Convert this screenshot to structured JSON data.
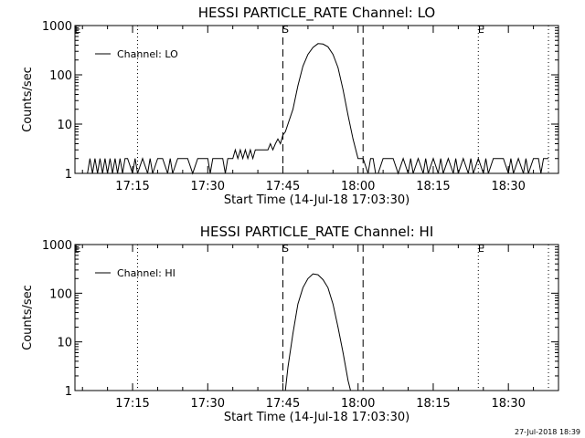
{
  "footer": {
    "timestamp": "27-Jul-2018 18:39"
  },
  "chart_data": [
    {
      "type": "line",
      "title": "HESSI PARTICLE_RATE Channel: LO",
      "xlabel": "Start Time (14-Jul-18 17:03:30)",
      "ylabel": "Counts/sec",
      "y_scale": "log",
      "ylim": [
        1,
        1000
      ],
      "xlim": [
        "17:03:30",
        "18:40:00"
      ],
      "x_ticks": [
        "17:15",
        "17:30",
        "17:45",
        "18:00",
        "18:15",
        "18:30"
      ],
      "y_ticks": [
        "1",
        "10",
        "100",
        "1000"
      ],
      "legend": {
        "position": "top-left",
        "entries": [
          "Channel: LO"
        ]
      },
      "grid": false,
      "markers": {
        "dashed": [
          "17:45",
          "18:01"
        ],
        "dotted": [
          "17:16",
          "18:24",
          "18:38"
        ],
        "labels": [
          {
            "text": "S",
            "at": "17:45"
          },
          {
            "text": "E",
            "at": "18:24"
          },
          {
            "text": "E",
            "at": "17:03:30"
          }
        ]
      },
      "series": [
        {
          "name": "Channel: LO",
          "points": [
            [
              "17:06",
              1.0
            ],
            [
              "17:06:30",
              2.0
            ],
            [
              "17:07",
              1.0
            ],
            [
              "17:07:30",
              2.0
            ],
            [
              "17:08",
              1.0
            ],
            [
              "17:08:30",
              2.0
            ],
            [
              "17:09",
              1.0
            ],
            [
              "17:09:30",
              2.0
            ],
            [
              "17:10",
              1.0
            ],
            [
              "17:10:30",
              2.0
            ],
            [
              "17:11",
              1.0
            ],
            [
              "17:11:30",
              2.0
            ],
            [
              "17:12",
              1.0
            ],
            [
              "17:12:30",
              2.0
            ],
            [
              "17:13",
              1.0
            ],
            [
              "17:13:30",
              2.0
            ],
            [
              "17:14",
              2.0
            ],
            [
              "17:15",
              1.0
            ],
            [
              "17:15:30",
              2.0
            ],
            [
              "17:16",
              1.0
            ],
            [
              "17:17",
              2.0
            ],
            [
              "17:18",
              1.0
            ],
            [
              "17:18:30",
              2.0
            ],
            [
              "17:19",
              1.0
            ],
            [
              "17:20",
              2.0
            ],
            [
              "17:21",
              2.0
            ],
            [
              "17:22",
              1.0
            ],
            [
              "17:22:30",
              2.0
            ],
            [
              "17:23",
              1.0
            ],
            [
              "17:24",
              2.0
            ],
            [
              "17:26",
              2.0
            ],
            [
              "17:27",
              1.0
            ],
            [
              "17:28",
              2.0
            ],
            [
              "17:30",
              2.0
            ],
            [
              "17:30:30",
              1.0
            ],
            [
              "17:31",
              2.0
            ],
            [
              "17:33",
              2.0
            ],
            [
              "17:33:30",
              1.0
            ],
            [
              "17:34",
              2.0
            ],
            [
              "17:35",
              2.0
            ],
            [
              "17:35:30",
              3.0
            ],
            [
              "17:36",
              2.0
            ],
            [
              "17:36:30",
              3.0
            ],
            [
              "17:37",
              2.0
            ],
            [
              "17:37:30",
              3.0
            ],
            [
              "17:38",
              2.0
            ],
            [
              "17:38:30",
              3.0
            ],
            [
              "17:39",
              2.0
            ],
            [
              "17:39:30",
              3.0
            ],
            [
              "17:40",
              3.0
            ],
            [
              "17:41",
              3.0
            ],
            [
              "17:42",
              3.0
            ],
            [
              "17:42:30",
              4.0
            ],
            [
              "17:43",
              3.0
            ],
            [
              "17:43:30",
              4.0
            ],
            [
              "17:44",
              5.0
            ],
            [
              "17:44:30",
              4.0
            ],
            [
              "17:45",
              6.0
            ],
            [
              "17:45:30",
              7.0
            ],
            [
              "17:46",
              10.0
            ],
            [
              "17:47",
              20.0
            ],
            [
              "17:48",
              60.0
            ],
            [
              "17:49",
              150.0
            ],
            [
              "17:50",
              260.0
            ],
            [
              "17:51",
              360.0
            ],
            [
              "17:52",
              430.0
            ],
            [
              "17:53",
              420.0
            ],
            [
              "17:54",
              370.0
            ],
            [
              "17:55",
              260.0
            ],
            [
              "17:56",
              140.0
            ],
            [
              "17:57",
              50.0
            ],
            [
              "17:58",
              15.0
            ],
            [
              "17:59",
              5.0
            ],
            [
              "18:00",
              2.0
            ],
            [
              "18:01",
              2.0
            ],
            [
              "18:02",
              1.0
            ],
            [
              "18:02:30",
              2.0
            ],
            [
              "18:03",
              2.0
            ],
            [
              "18:03:30",
              1.0
            ],
            [
              "18:04",
              1.0
            ],
            [
              "18:05",
              2.0
            ],
            [
              "18:06",
              2.0
            ],
            [
              "18:07",
              2.0
            ],
            [
              "18:08",
              1.0
            ],
            [
              "18:09",
              2.0
            ],
            [
              "18:10",
              1.0
            ],
            [
              "18:10:30",
              2.0
            ],
            [
              "18:11",
              1.0
            ],
            [
              "18:12",
              2.0
            ],
            [
              "18:13",
              1.0
            ],
            [
              "18:13:30",
              2.0
            ],
            [
              "18:14",
              1.0
            ],
            [
              "18:15",
              2.0
            ],
            [
              "18:16",
              1.0
            ],
            [
              "18:16:30",
              2.0
            ],
            [
              "18:17",
              1.0
            ],
            [
              "18:18",
              2.0
            ],
            [
              "18:19",
              1.0
            ],
            [
              "18:19:30",
              2.0
            ],
            [
              "18:20",
              1.0
            ],
            [
              "18:21",
              2.0
            ],
            [
              "18:22",
              1.0
            ],
            [
              "18:22:30",
              2.0
            ],
            [
              "18:23",
              1.0
            ],
            [
              "18:24",
              2.0
            ],
            [
              "18:25",
              1.0
            ],
            [
              "18:25:30",
              2.0
            ],
            [
              "18:26",
              1.0
            ],
            [
              "18:27",
              2.0
            ],
            [
              "18:28",
              2.0
            ],
            [
              "18:29",
              2.0
            ],
            [
              "18:30",
              1.0
            ],
            [
              "18:30:30",
              2.0
            ],
            [
              "18:31",
              1.0
            ],
            [
              "18:32",
              2.0
            ],
            [
              "18:33",
              1.0
            ],
            [
              "18:33:30",
              2.0
            ],
            [
              "18:34",
              1.0
            ],
            [
              "18:35",
              2.0
            ],
            [
              "18:36",
              2.0
            ],
            [
              "18:36:30",
              1.0
            ],
            [
              "18:37",
              2.0
            ],
            [
              "18:38",
              2.0
            ]
          ]
        }
      ]
    },
    {
      "type": "line",
      "title": "HESSI PARTICLE_RATE Channel: HI",
      "xlabel": "Start Time (14-Jul-18 17:03:30)",
      "ylabel": "Counts/sec",
      "y_scale": "log",
      "ylim": [
        1,
        1000
      ],
      "xlim": [
        "17:03:30",
        "18:40:00"
      ],
      "x_ticks": [
        "17:15",
        "17:30",
        "17:45",
        "18:00",
        "18:15",
        "18:30"
      ],
      "y_ticks": [
        "1",
        "10",
        "100",
        "1000"
      ],
      "legend": {
        "position": "top-left",
        "entries": [
          "Channel: HI"
        ]
      },
      "grid": false,
      "markers": {
        "dashed": [
          "17:45",
          "18:01"
        ],
        "dotted": [
          "17:16",
          "18:24",
          "18:38"
        ],
        "labels": [
          {
            "text": "S",
            "at": "17:45"
          },
          {
            "text": "E",
            "at": "18:24"
          },
          {
            "text": "E",
            "at": "17:03:30"
          }
        ]
      },
      "series": [
        {
          "name": "Channel: HI",
          "points": [
            [
              "17:45:30",
              1.0
            ],
            [
              "17:46",
              3.0
            ],
            [
              "17:47",
              15.0
            ],
            [
              "17:48",
              60.0
            ],
            [
              "17:49",
              130.0
            ],
            [
              "17:50",
              200.0
            ],
            [
              "17:51",
              250.0
            ],
            [
              "17:52",
              240.0
            ],
            [
              "17:53",
              190.0
            ],
            [
              "17:54",
              130.0
            ],
            [
              "17:55",
              60.0
            ],
            [
              "17:56",
              20.0
            ],
            [
              "17:57",
              6.0
            ],
            [
              "17:58",
              1.6
            ],
            [
              "17:58:30",
              1.0
            ]
          ]
        }
      ]
    }
  ]
}
